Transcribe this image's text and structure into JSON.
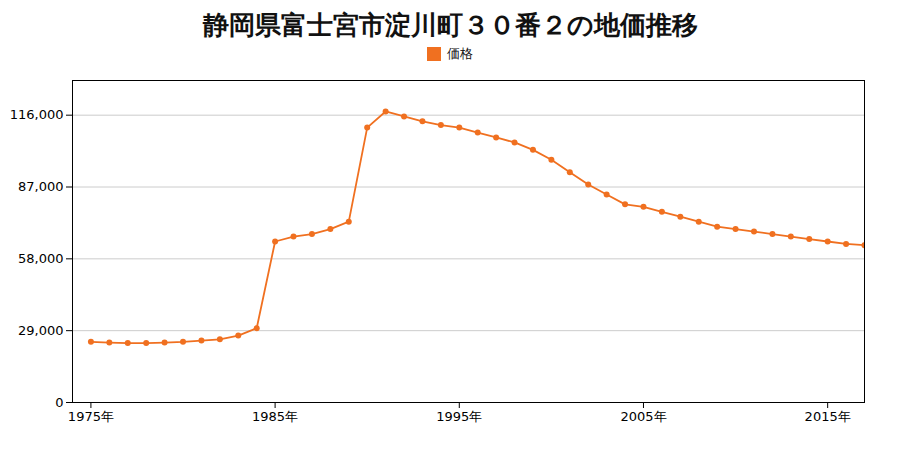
{
  "chart_data": {
    "type": "line",
    "title": "静岡県富士宮市淀川町３０番２の地価推移",
    "x": [
      1975,
      1976,
      1977,
      1978,
      1979,
      1980,
      1981,
      1982,
      1983,
      1984,
      1985,
      1986,
      1987,
      1988,
      1989,
      1990,
      1991,
      1992,
      1993,
      1994,
      1995,
      1996,
      1997,
      1998,
      1999,
      2000,
      2001,
      2002,
      2003,
      2004,
      2005,
      2006,
      2007,
      2008,
      2009,
      2010,
      2011,
      2012,
      2013,
      2014,
      2015,
      2016,
      2017
    ],
    "series": [
      {
        "name": "価格",
        "color": "#f07020",
        "marker": "circle",
        "values": [
          24500,
          24200,
          24000,
          24000,
          24200,
          24500,
          25000,
          25500,
          27000,
          30000,
          65000,
          67000,
          68000,
          70000,
          73000,
          111000,
          117500,
          115500,
          113500,
          112000,
          111000,
          109000,
          107000,
          105000,
          102000,
          98000,
          93000,
          88000,
          84000,
          80000,
          79000,
          77000,
          75000,
          73000,
          71000,
          70000,
          69000,
          68000,
          67000,
          66000,
          65000,
          64000,
          63500
        ]
      }
    ],
    "xlim": [
      1974,
      2017
    ],
    "xticks": [
      {
        "value": 1975,
        "label": "1975年"
      },
      {
        "value": 1985,
        "label": "1985年"
      },
      {
        "value": 1995,
        "label": "1995年"
      },
      {
        "value": 2005,
        "label": "2005年"
      },
      {
        "value": 2015,
        "label": "2015年"
      }
    ],
    "ylim": [
      0,
      130000
    ],
    "yticks": [
      0,
      {
        "value": 29000,
        "label": "29,000"
      },
      {
        "value": 58000,
        "label": "58,000"
      },
      {
        "value": 87000,
        "label": "87,000"
      },
      {
        "value": 116000,
        "label": "116,000"
      }
    ],
    "grid": "y",
    "legend": "top"
  }
}
